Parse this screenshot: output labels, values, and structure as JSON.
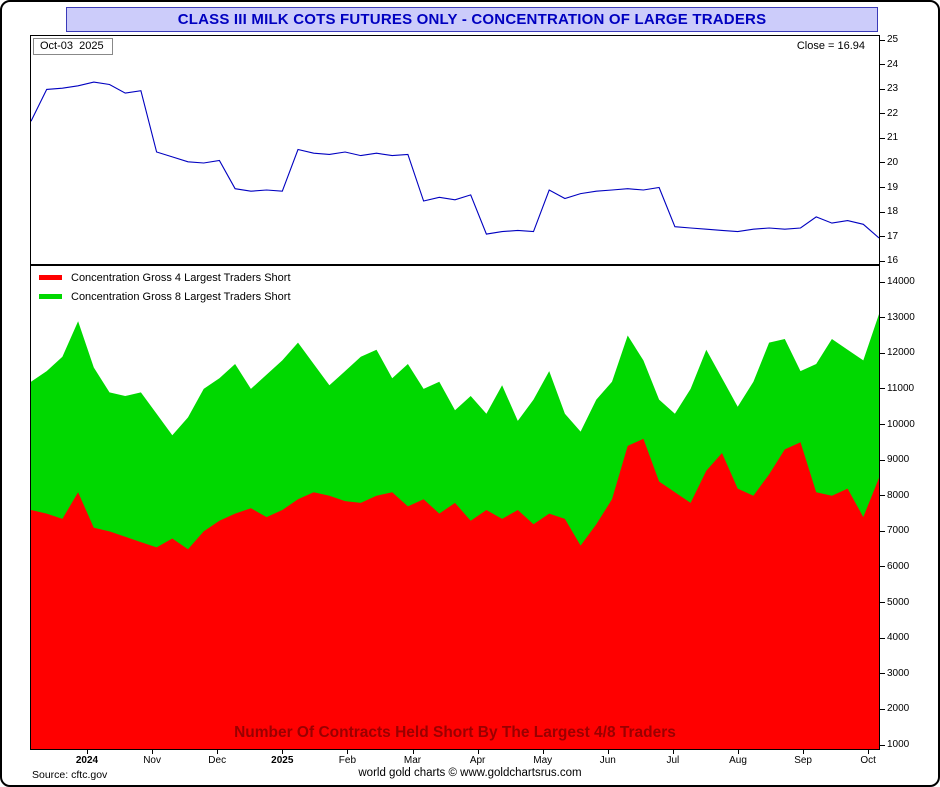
{
  "window": {
    "title": "CLASS III MILK COTS FUTURES ONLY - CONCENTRATION OF LARGE TRADERS"
  },
  "top_chart": {
    "date_label": "Oct-03  2025",
    "close_label": "Close = 16.94",
    "y_ticks": [
      25,
      24,
      23,
      22,
      21,
      20,
      19,
      18,
      17,
      16
    ]
  },
  "bottom_chart": {
    "legend": [
      {
        "label": "Concentration Gross 4 Largest Traders Short",
        "color": "#ff0000"
      },
      {
        "label": "Concentration Gross 8 Largest Traders Short",
        "color": "#00d800"
      }
    ],
    "overlay_title": "Number Of Contracts Held Short By The Largest 4/8 Traders",
    "overlay_color": "#990000",
    "y_ticks": [
      14000,
      13000,
      12000,
      11000,
      10000,
      9000,
      8000,
      7000,
      6000,
      5000,
      4000,
      3000,
      2000,
      1000
    ]
  },
  "x_axis": {
    "labels": [
      "2024",
      "Nov",
      "Dec",
      "2025",
      "Feb",
      "Mar",
      "Apr",
      "May",
      "Jun",
      "Jul",
      "Aug",
      "Sep",
      "Oct"
    ]
  },
  "footer": {
    "source": "Source: cftc.gov",
    "credit": "world gold charts © www.goldchartsrus.com"
  },
  "chart_data": [
    {
      "type": "line",
      "title": "Class III Milk futures price (weekly close)",
      "x_range": "Oct 2024 - Oct 2025, weekly",
      "ylim": [
        16,
        25
      ],
      "last_close": 16.94,
      "color": "#0000c0",
      "values": [
        21.7,
        23.0,
        23.05,
        23.15,
        23.3,
        23.2,
        22.85,
        22.95,
        20.45,
        20.25,
        20.05,
        20.0,
        20.1,
        18.95,
        18.85,
        18.9,
        18.85,
        20.55,
        20.4,
        20.35,
        20.45,
        20.3,
        20.4,
        20.3,
        20.35,
        18.45,
        18.6,
        18.5,
        18.7,
        17.1,
        17.2,
        17.25,
        17.2,
        18.9,
        18.55,
        18.75,
        18.85,
        18.9,
        18.95,
        18.9,
        19.0,
        17.4,
        17.35,
        17.3,
        17.25,
        17.2,
        17.3,
        17.35,
        17.3,
        17.35,
        17.8,
        17.55,
        17.65,
        17.5,
        16.94
      ]
    },
    {
      "type": "area",
      "title": "Number Of Contracts Held Short By The Largest 4/8 Traders",
      "x_range": "Oct 2024 - Oct 2025, weekly",
      "ylim": [
        1000,
        14000
      ],
      "legend_position": "top-left",
      "series": [
        {
          "name": "Concentration Gross 4 Largest Traders Short",
          "color": "#ff0000",
          "values": [
            7600,
            7500,
            7350,
            8100,
            7100,
            7000,
            6850,
            6700,
            6550,
            6800,
            6500,
            7000,
            7300,
            7500,
            7650,
            7400,
            7600,
            7900,
            8100,
            8000,
            7850,
            7800,
            8000,
            8100,
            7700,
            7900,
            7500,
            7800,
            7300,
            7600,
            7350,
            7600,
            7200,
            7500,
            7350,
            6600,
            7200,
            7900,
            9400,
            9600,
            8400,
            8100,
            7800,
            8700,
            9200,
            8200,
            8000,
            8600,
            9300,
            9500,
            8100,
            8000,
            8200,
            7400,
            8500
          ]
        },
        {
          "name": "Concentration Gross 8 Largest Traders Short",
          "color": "#00d800",
          "values": [
            11200,
            11500,
            11900,
            12900,
            11600,
            10900,
            10800,
            10900,
            10300,
            9700,
            10200,
            11000,
            11300,
            11700,
            11000,
            11400,
            11800,
            12300,
            11700,
            11100,
            11500,
            11900,
            12100,
            11300,
            11700,
            11000,
            11200,
            10400,
            10800,
            10300,
            11100,
            10100,
            10700,
            11500,
            10300,
            9800,
            10700,
            11200,
            12500,
            11800,
            10700,
            10300,
            11000,
            12100,
            11300,
            10500,
            11200,
            12300,
            12400,
            11500,
            11700,
            12400,
            12100,
            11800,
            13100
          ]
        }
      ]
    }
  ]
}
